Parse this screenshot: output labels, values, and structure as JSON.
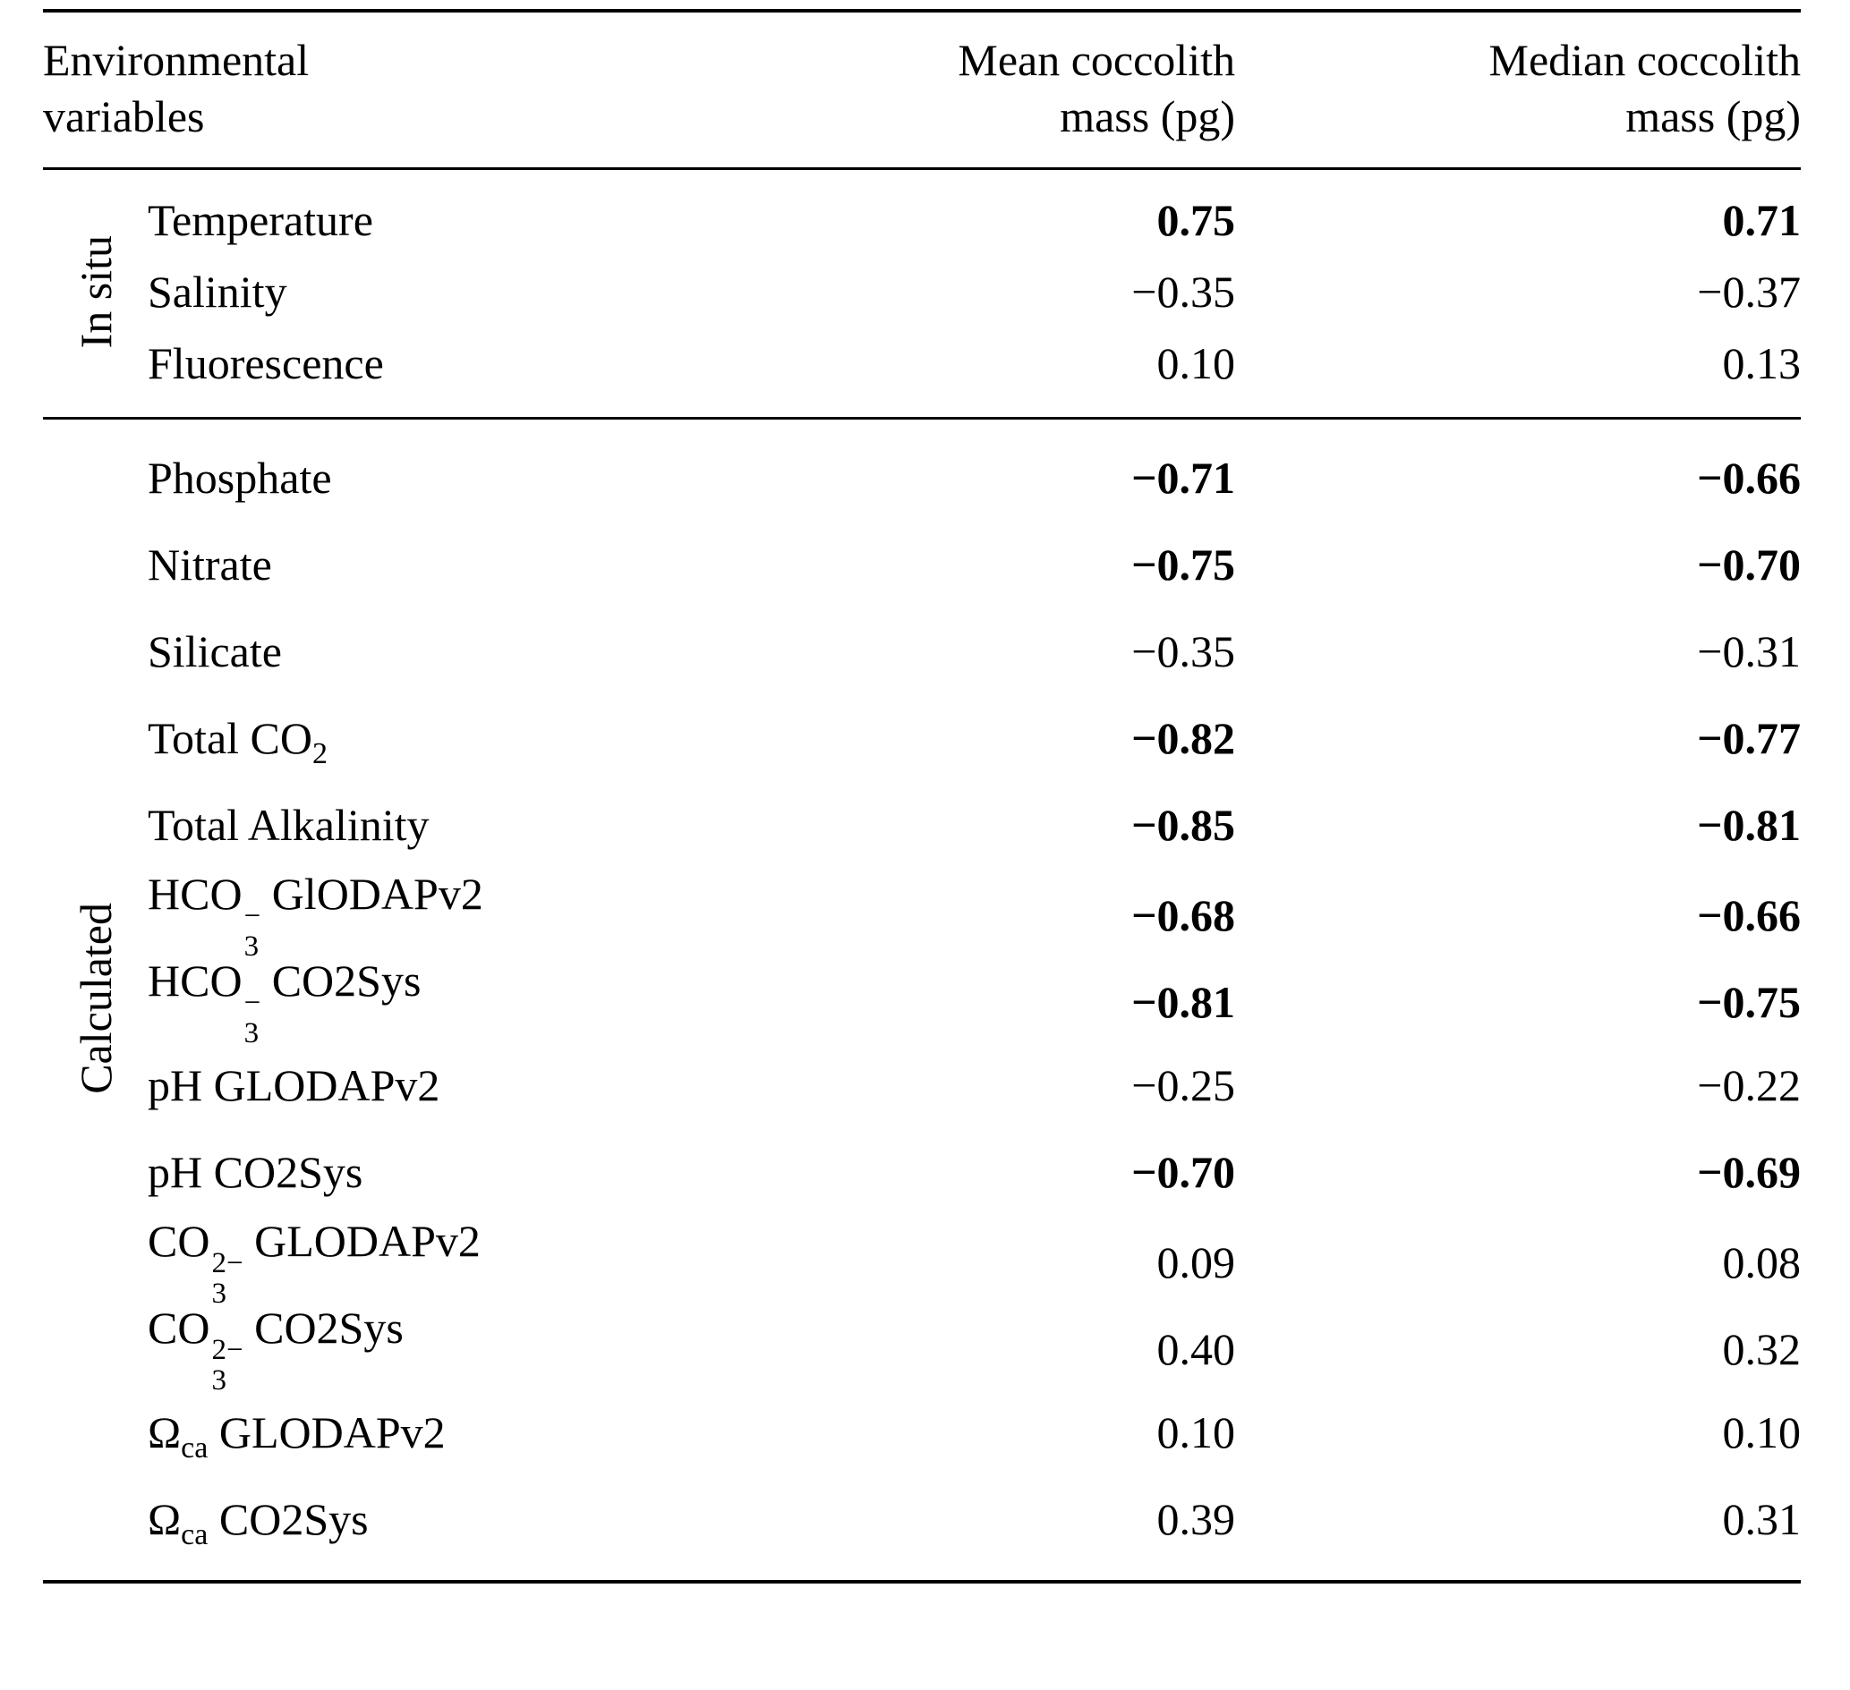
{
  "table": {
    "headers": {
      "col1": "Environmental\nvariables",
      "col2": "Mean coccolith\nmass (pg)",
      "col3": "Median coccolith\nmass (pg)"
    },
    "groups": [
      {
        "id": "in-situ",
        "label": "In situ",
        "rows": [
          {
            "name": "Temperature",
            "segments": [
              {
                "t": "text",
                "v": "Temperature"
              }
            ],
            "mean": "0.75",
            "mean_bold": true,
            "median": "0.71",
            "median_bold": true
          },
          {
            "name": "Salinity",
            "segments": [
              {
                "t": "text",
                "v": "Salinity"
              }
            ],
            "mean": "−0.35",
            "mean_bold": false,
            "median": "−0.37",
            "median_bold": false
          },
          {
            "name": "Fluorescence",
            "segments": [
              {
                "t": "text",
                "v": "Fluorescence"
              }
            ],
            "mean": "0.10",
            "mean_bold": false,
            "median": "0.13",
            "median_bold": false
          }
        ]
      },
      {
        "id": "calculated",
        "label": "Calculated",
        "rows": [
          {
            "name": "Phosphate",
            "segments": [
              {
                "t": "text",
                "v": "Phosphate"
              }
            ],
            "mean": "−0.71",
            "mean_bold": true,
            "median": "−0.66",
            "median_bold": true
          },
          {
            "name": "Nitrate",
            "segments": [
              {
                "t": "text",
                "v": "Nitrate"
              }
            ],
            "mean": "−0.75",
            "mean_bold": true,
            "median": "−0.70",
            "median_bold": true
          },
          {
            "name": "Silicate",
            "segments": [
              {
                "t": "text",
                "v": "Silicate"
              }
            ],
            "mean": "−0.35",
            "mean_bold": false,
            "median": "−0.31",
            "median_bold": false
          },
          {
            "name": "Total CO2",
            "segments": [
              {
                "t": "text",
                "v": "Total CO"
              },
              {
                "t": "sub",
                "v": "2"
              }
            ],
            "mean": "−0.82",
            "mean_bold": true,
            "median": "−0.77",
            "median_bold": true
          },
          {
            "name": "Total Alkalinity",
            "segments": [
              {
                "t": "text",
                "v": "Total Alkalinity"
              }
            ],
            "mean": "−0.85",
            "mean_bold": true,
            "median": "−0.81",
            "median_bold": true
          },
          {
            "name": "HCO3− GlODAPv2",
            "segments": [
              {
                "t": "text",
                "v": "HCO"
              },
              {
                "t": "stack",
                "sup": "−",
                "sub": "3"
              },
              {
                "t": "text",
                "v": " GlODAPv2"
              }
            ],
            "mean": "−0.68",
            "mean_bold": true,
            "median": "−0.66",
            "median_bold": true
          },
          {
            "name": "HCO3− CO2Sys",
            "segments": [
              {
                "t": "text",
                "v": "HCO"
              },
              {
                "t": "stack",
                "sup": "−",
                "sub": "3"
              },
              {
                "t": "text",
                "v": " CO2Sys"
              }
            ],
            "mean": "−0.81",
            "mean_bold": true,
            "median": "−0.75",
            "median_bold": true
          },
          {
            "name": "pH GLODAPv2",
            "segments": [
              {
                "t": "text",
                "v": "pH GLODAPv2"
              }
            ],
            "mean": "−0.25",
            "mean_bold": false,
            "median": "−0.22",
            "median_bold": false
          },
          {
            "name": "pH CO2Sys",
            "segments": [
              {
                "t": "text",
                "v": "pH CO2Sys"
              }
            ],
            "mean": "−0.70",
            "mean_bold": true,
            "median": "−0.69",
            "median_bold": true
          },
          {
            "name": "CO3 2− GLODAPv2",
            "segments": [
              {
                "t": "text",
                "v": "CO"
              },
              {
                "t": "stack",
                "sup": "2−",
                "sub": "3"
              },
              {
                "t": "text",
                "v": " GLODAPv2"
              }
            ],
            "mean": "0.09",
            "mean_bold": false,
            "median": "0.08",
            "median_bold": false
          },
          {
            "name": "CO3 2− CO2Sys",
            "segments": [
              {
                "t": "text",
                "v": "CO"
              },
              {
                "t": "stack",
                "sup": "2−",
                "sub": "3"
              },
              {
                "t": "text",
                "v": " CO2Sys"
              }
            ],
            "mean": "0.40",
            "mean_bold": false,
            "median": "0.32",
            "median_bold": false
          },
          {
            "name": "Ωca GLODAPv2",
            "segments": [
              {
                "t": "text",
                "v": "Ω"
              },
              {
                "t": "sub",
                "v": "ca"
              },
              {
                "t": "text",
                "v": " GLODAPv2"
              }
            ],
            "mean": "0.10",
            "mean_bold": false,
            "median": "0.10",
            "median_bold": false
          },
          {
            "name": "Ωca CO2Sys",
            "segments": [
              {
                "t": "text",
                "v": "Ω"
              },
              {
                "t": "sub",
                "v": "ca"
              },
              {
                "t": "text",
                "v": " CO2Sys"
              }
            ],
            "mean": "0.39",
            "mean_bold": false,
            "median": "0.31",
            "median_bold": false
          }
        ]
      }
    ]
  },
  "chart_data": {
    "type": "table",
    "title": "Correlation of environmental variables with coccolith mass",
    "columns": [
      "Environmental variables",
      "Mean coccolith mass (pg)",
      "Median coccolith mass (pg)"
    ],
    "rows": [
      [
        "In situ",
        "Temperature",
        0.75,
        0.71
      ],
      [
        "In situ",
        "Salinity",
        -0.35,
        -0.37
      ],
      [
        "In situ",
        "Fluorescence",
        0.1,
        0.13
      ],
      [
        "Calculated",
        "Phosphate",
        -0.71,
        -0.66
      ],
      [
        "Calculated",
        "Nitrate",
        -0.75,
        -0.7
      ],
      [
        "Calculated",
        "Silicate",
        -0.35,
        -0.31
      ],
      [
        "Calculated",
        "Total CO2",
        -0.82,
        -0.77
      ],
      [
        "Calculated",
        "Total Alkalinity",
        -0.85,
        -0.81
      ],
      [
        "Calculated",
        "HCO3− GlODAPv2",
        -0.68,
        -0.66
      ],
      [
        "Calculated",
        "HCO3− CO2Sys",
        -0.81,
        -0.75
      ],
      [
        "Calculated",
        "pH GLODAPv2",
        -0.25,
        -0.22
      ],
      [
        "Calculated",
        "pH CO2Sys",
        -0.7,
        -0.69
      ],
      [
        "Calculated",
        "CO3 2− GLODAPv2",
        0.09,
        0.08
      ],
      [
        "Calculated",
        "CO3 2− CO2Sys",
        0.4,
        0.32
      ],
      [
        "Calculated",
        "Ωca GLODAPv2",
        0.1,
        0.1
      ],
      [
        "Calculated",
        "Ωca CO2Sys",
        0.39,
        0.31
      ]
    ]
  }
}
